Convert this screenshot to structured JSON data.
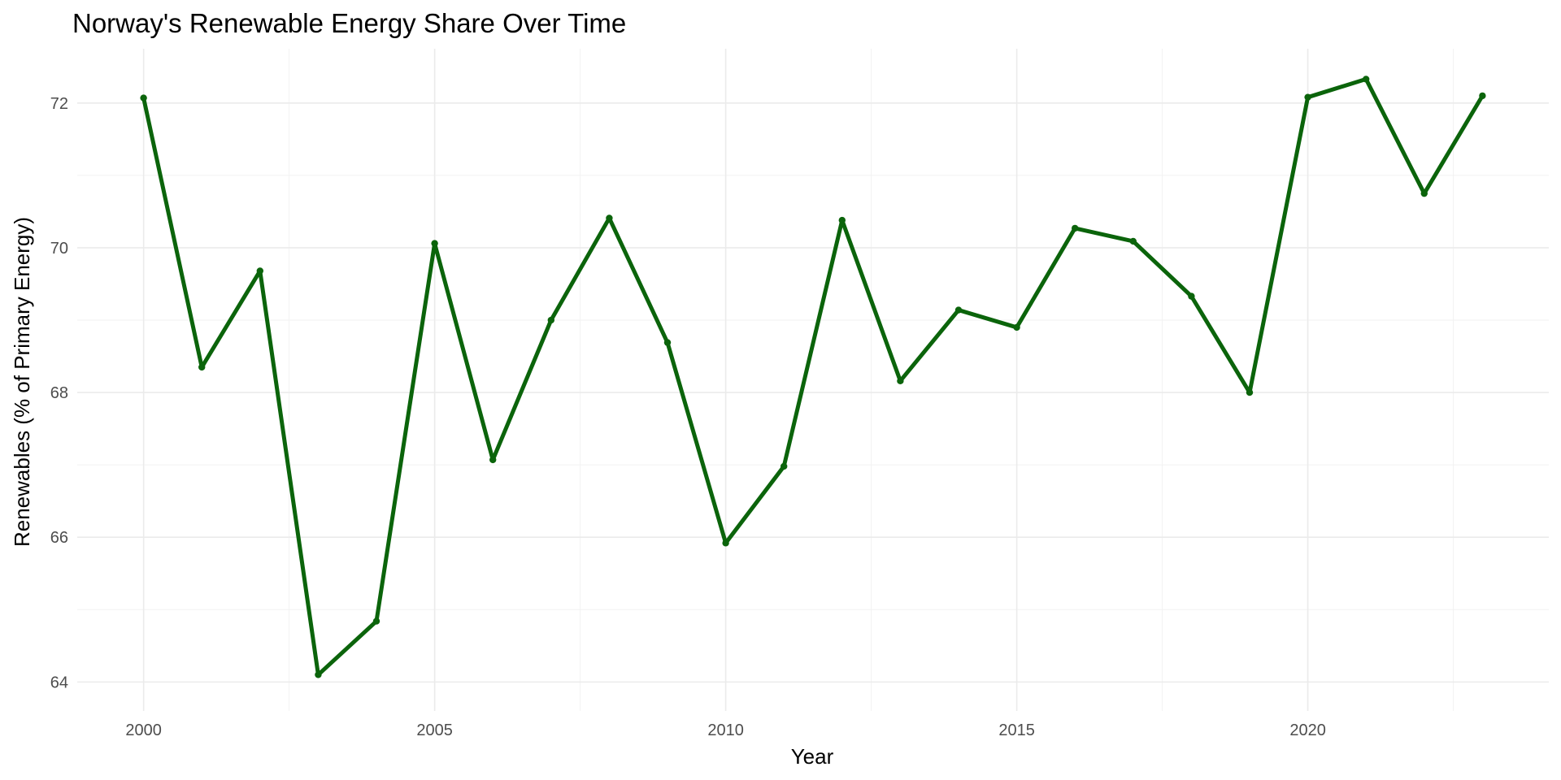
{
  "chart_data": {
    "type": "line",
    "title": "Norway's Renewable Energy Share Over Time",
    "xlabel": "Year",
    "ylabel": "Renewables (% of Primary Energy)",
    "x": [
      2000,
      2001,
      2002,
      2003,
      2004,
      2005,
      2006,
      2007,
      2008,
      2009,
      2010,
      2011,
      2012,
      2013,
      2014,
      2015,
      2016,
      2017,
      2018,
      2019,
      2020,
      2021,
      2022,
      2023
    ],
    "series": [
      {
        "values": [
          72.07,
          68.35,
          69.68,
          64.1,
          64.84,
          70.06,
          67.07,
          69.0,
          70.41,
          68.69,
          65.92,
          66.98,
          70.38,
          68.16,
          69.14,
          68.9,
          70.27,
          70.09,
          69.33,
          68.0,
          72.08,
          72.33,
          70.75,
          72.1
        ]
      }
    ],
    "xticks": [
      2000,
      2005,
      2010,
      2015,
      2020
    ],
    "yticks": [
      64,
      66,
      68,
      70,
      72
    ],
    "xlim": [
      1998.86,
      2024.14
    ],
    "ylim": [
      63.6,
      72.75
    ],
    "grid": true,
    "legend": "none",
    "colors": {
      "line": "#0b640b",
      "point": "#0b640b",
      "grid": "#ebebeb",
      "tick_text": "#4d4d4d"
    }
  }
}
